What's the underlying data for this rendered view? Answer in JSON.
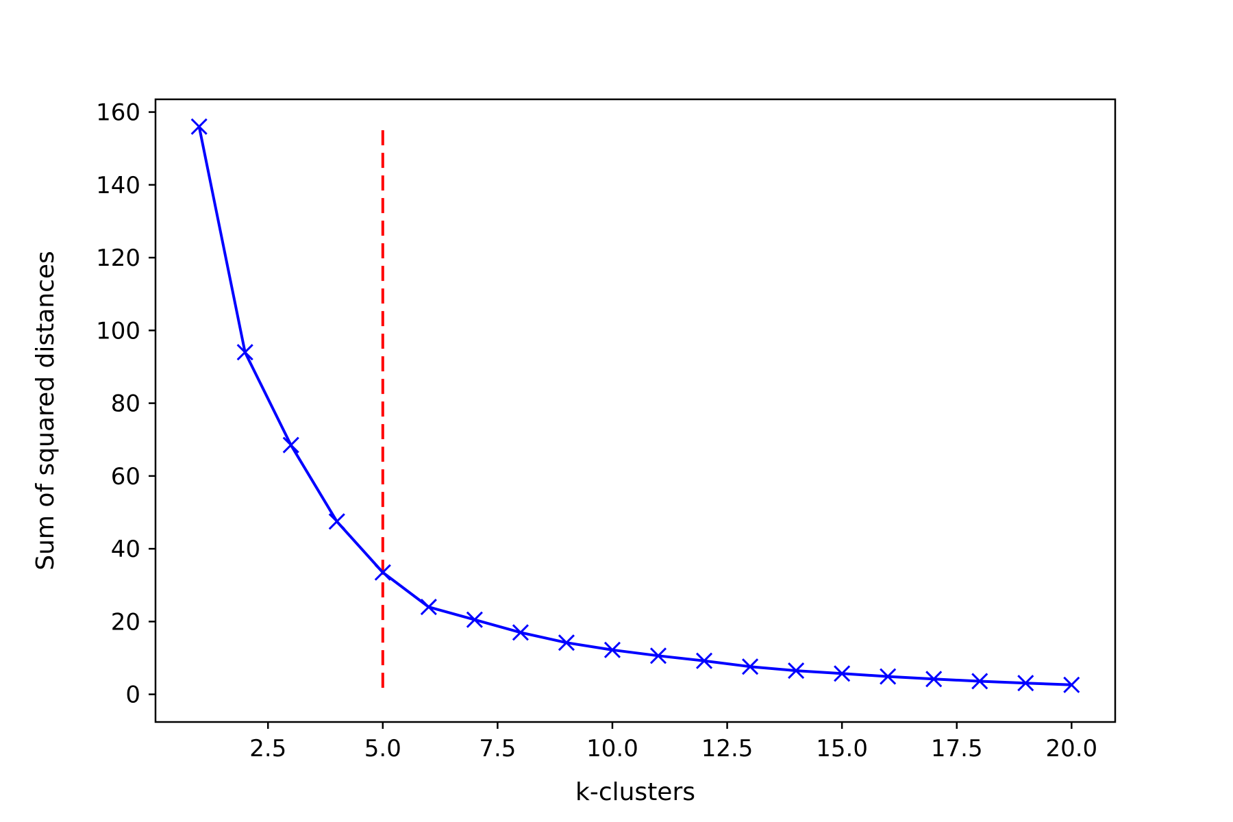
{
  "chart_data": {
    "type": "line",
    "title": "",
    "xlabel": "k-clusters",
    "ylabel": "Sum of squared distances",
    "xlim": [
      0.05,
      20.95
    ],
    "ylim": [
      -7.6,
      163.5
    ],
    "x_ticks": [
      2.5,
      5.0,
      7.5,
      10.0,
      12.5,
      15.0,
      17.5,
      20.0
    ],
    "x_tick_labels": [
      "2.5",
      "5.0",
      "7.5",
      "10.0",
      "12.5",
      "15.0",
      "17.5",
      "20.0"
    ],
    "y_ticks": [
      0,
      20,
      40,
      60,
      80,
      100,
      120,
      140,
      160
    ],
    "y_tick_labels": [
      "0",
      "20",
      "40",
      "60",
      "80",
      "100",
      "120",
      "140",
      "160"
    ],
    "grid": false,
    "series": [
      {
        "color": "#0000ff",
        "marker": "x",
        "x": [
          1,
          2,
          3,
          4,
          5,
          6,
          7,
          8,
          9,
          10,
          11,
          12,
          13,
          14,
          15,
          16,
          17,
          18,
          19,
          20
        ],
        "y": [
          156.0,
          94.0,
          68.5,
          47.5,
          33.5,
          24.0,
          20.5,
          17.0,
          14.2,
          12.2,
          10.6,
          9.2,
          7.6,
          6.5,
          5.7,
          4.9,
          4.2,
          3.6,
          3.1,
          2.6
        ]
      }
    ],
    "vline": {
      "x": 5,
      "y_from": 0,
      "y_to": 155,
      "color": "#ff0000",
      "style": "dashed"
    }
  }
}
